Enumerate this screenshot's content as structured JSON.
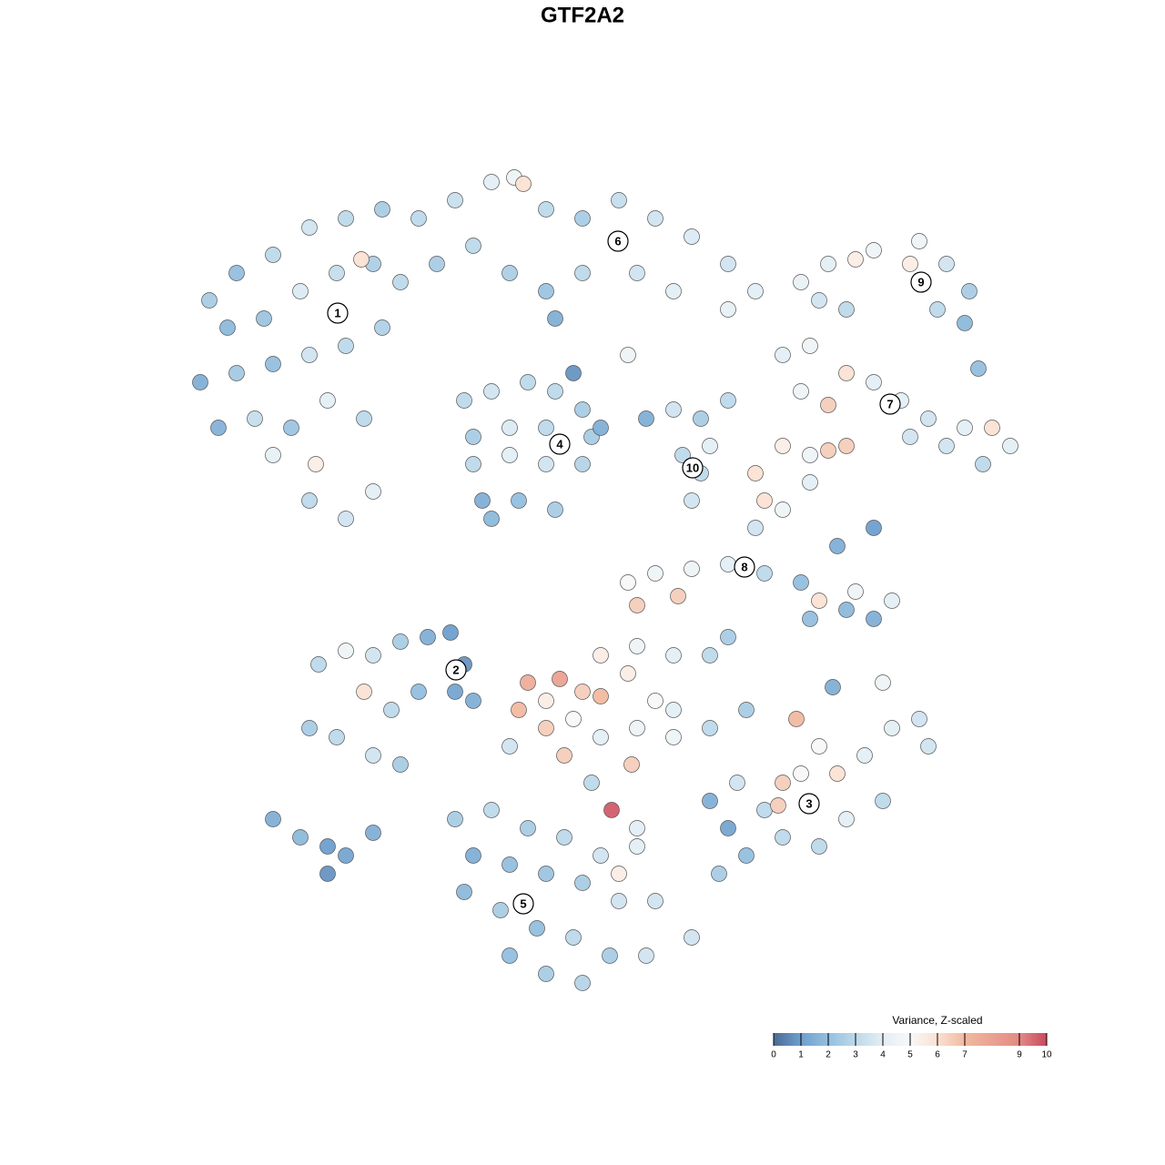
{
  "chart_data": {
    "type": "scatter",
    "title": "GTF2A2",
    "xlim": [
      0,
      1280
    ],
    "ylim": [
      1280,
      0
    ],
    "x": [
      230,
      260,
      300,
      340,
      380,
      420,
      250,
      290,
      330,
      370,
      410,
      440,
      220,
      260,
      300,
      340,
      380,
      420,
      280,
      320,
      360,
      400,
      300,
      347,
      340,
      380,
      410,
      397,
      240,
      460,
      500,
      540,
      565,
      575,
      600,
      640,
      680,
      720,
      760,
      800,
      830,
      480,
      520,
      560,
      600,
      640,
      700,
      740,
      800,
      610,
      630,
      690,
      880,
      910,
      940,
      960,
      1000,
      1010,
      1040,
      1065,
      1060,
      1030,
      930,
      900,
      860,
      890,
      930,
      960,
      990,
      1020,
      1060,
      1090,
      1110,
      1080,
      1040,
      1000,
      910,
      880,
      1075,
      510,
      540,
      580,
      610,
      640,
      520,
      560,
      600,
      650,
      520,
      560,
      600,
      640,
      530,
      570,
      610,
      540,
      660,
      740,
      770,
      800,
      750,
      780,
      770,
      760,
      710,
      830,
      860,
      890,
      910,
      930,
      840,
      860,
      890,
      830,
      690,
      720,
      760,
      800,
      840,
      880,
      920,
      960,
      900,
      940,
      980,
      890,
      930,
      960,
      745,
      700,
      580,
      615,
      600,
      640,
      660,
      690,
      720,
      740,
      570,
      600,
      630,
      660,
      700,
      740,
      780,
      820,
      660,
      700,
      740,
      780,
      800,
      694,
      672,
      650,
      620,
      560,
      700,
      350,
      380,
      410,
      440,
      470,
      495,
      510,
      500,
      460,
      400,
      430,
      340,
      370,
      410,
      440,
      520,
      300,
      330,
      360,
      380,
      360,
      410,
      500,
      540,
      580,
      620,
      660,
      700,
      520,
      560,
      600,
      640,
      680,
      720,
      510,
      550,
      590,
      630,
      670,
      710,
      560,
      600,
      640,
      760,
      680,
      780,
      800,
      820,
      840,
      860,
      880,
      900,
      920,
      950,
      980,
      1010,
      1020,
      970,
      930,
      900,
      860,
      810,
      875,
      915,
      970,
      790,
      855
    ],
    "y": [
      330,
      300,
      280,
      250,
      240,
      230,
      360,
      350,
      320,
      300,
      290,
      310,
      420,
      410,
      400,
      390,
      380,
      360,
      460,
      470,
      440,
      460,
      500,
      510,
      550,
      570,
      540,
      285,
      470,
      240,
      220,
      200,
      195,
      202,
      230,
      240,
      220,
      240,
      260,
      290,
      320,
      290,
      270,
      300,
      320,
      300,
      300,
      320,
      340,
      350,
      410,
      390,
      310,
      290,
      285,
      275,
      290,
      265,
      290,
      320,
      355,
      340,
      340,
      330,
      390,
      380,
      410,
      420,
      440,
      460,
      470,
      470,
      490,
      510,
      490,
      480,
      445,
      430,
      405,
      440,
      430,
      420,
      430,
      450,
      480,
      470,
      470,
      480,
      510,
      500,
      510,
      510,
      550,
      550,
      560,
      570,
      470,
      450,
      460,
      440,
      500,
      490,
      520,
      550,
      460,
      520,
      490,
      500,
      495,
      490,
      550,
      560,
      530,
      580,
      640,
      630,
      625,
      620,
      630,
      640,
      600,
      580,
      660,
      650,
      660,
      680,
      670,
      680,
      655,
      665,
      750,
      746,
      770,
      760,
      765,
      740,
      770,
      780,
      780,
      800,
      790,
      810,
      800,
      810,
      800,
      780,
      720,
      710,
      720,
      720,
      700,
      840,
      890,
      860,
      830,
      820,
      910,
      730,
      715,
      720,
      705,
      700,
      695,
      730,
      760,
      760,
      760,
      780,
      800,
      810,
      830,
      840,
      770,
      900,
      920,
      930,
      940,
      960,
      915,
      900,
      890,
      910,
      920,
      940,
      930,
      940,
      950,
      960,
      970,
      990,
      990,
      980,
      1000,
      1020,
      1030,
      1050,
      1050,
      1050,
      1070,
      1080,
      1030,
      960,
      880,
      910,
      940,
      890,
      860,
      850,
      820,
      850,
      830,
      800,
      790,
      820,
      880,
      900,
      930,
      920,
      860,
      790,
      755,
      750,
      960,
      885
    ],
    "values": [
      2.5,
      2,
      3,
      3.5,
      3,
      2.5,
      1.8,
      2.2,
      3.8,
      3.2,
      2.6,
      3,
      1.5,
      2.4,
      2,
      3.5,
      3,
      2.7,
      3.2,
      2.2,
      4,
      3,
      4.2,
      5.5,
      3,
      3.5,
      4,
      6,
      1.6,
      3,
      3.3,
      4,
      4.5,
      6,
      3,
      2.5,
      3.2,
      3.5,
      3.8,
      3.5,
      4,
      2.5,
      3,
      2.6,
      2.2,
      3,
      3.5,
      4,
      4.2,
      1.5,
      0.8,
      4.5,
      4.3,
      4,
      5.5,
      4.5,
      5.5,
      4.5,
      3.5,
      2.5,
      1.8,
      3,
      3,
      3.5,
      4,
      4.5,
      6,
      4,
      4,
      3.5,
      4,
      6,
      4,
      3,
      3.5,
      3.5,
      6.5,
      4.5,
      2,
      3,
      3.5,
      3,
      3,
      2.5,
      2.5,
      3.8,
      3,
      2.5,
      3,
      4,
      3.5,
      2.8,
      1.5,
      2,
      2.5,
      1.8,
      1.5,
      3.5,
      2.5,
      3,
      3,
      4,
      3,
      3.5,
      1.5,
      6,
      5.5,
      4.5,
      6.5,
      6.5,
      6,
      4.5,
      4,
      3.5,
      5,
      4.5,
      4.5,
      4,
      3,
      2,
      1.5,
      1,
      6,
      4.5,
      4,
      2,
      1.8,
      1.5,
      6.5,
      6.5,
      7.5,
      8,
      5.5,
      6.5,
      7,
      5.5,
      5,
      4,
      7,
      6.5,
      5,
      4,
      4.5,
      4.5,
      3,
      2.5,
      5.5,
      4.5,
      4,
      3,
      2.5,
      6.5,
      9.7,
      3,
      6.5,
      3.5,
      4,
      3,
      4.5,
      3.5,
      2.5,
      1.5,
      1,
      0.8,
      1.2,
      2,
      6,
      3,
      2.5,
      3,
      3.5,
      2.5,
      1.5,
      1.5,
      1.8,
      1,
      1.2,
      0.8,
      1.5,
      2.5,
      3,
      2.5,
      3,
      3.5,
      4,
      1.5,
      2,
      2.2,
      2.5,
      3.5,
      3.5,
      1.8,
      2.5,
      2,
      3,
      2.5,
      3.5,
      2,
      2.5,
      2.8,
      3.5,
      5.5,
      1.5,
      1.2,
      2,
      3,
      6.5,
      5,
      5,
      6,
      4,
      4,
      3.5,
      3.5,
      3,
      4,
      3,
      3,
      3.5,
      7,
      1.5,
      4.5,
      2.5,
      6.5
    ],
    "cluster_labels": [
      "1",
      "2",
      "3",
      "4",
      "5",
      "6",
      "7",
      "8",
      "9",
      "10"
    ],
    "cluster_x": [
      371,
      501,
      889,
      615,
      575,
      679,
      978,
      818,
      1012,
      761
    ],
    "cluster_y": [
      344,
      736,
      883,
      488,
      993,
      265,
      444,
      623,
      310,
      514
    ],
    "colorscale": [
      [
        0,
        "#4a6a96"
      ],
      [
        1,
        "#6f9fcd"
      ],
      [
        2,
        "#94bfdf"
      ],
      [
        3,
        "#bdd9ea"
      ],
      [
        4,
        "#e3eef5"
      ],
      [
        5,
        "#f8f8f8"
      ],
      [
        6,
        "#fbe1d3"
      ],
      [
        7,
        "#f1b9a0"
      ],
      [
        9,
        "#e28b84"
      ],
      [
        10,
        "#c9485d"
      ]
    ],
    "colorbar": {
      "title": "Variance, Z-scaled",
      "lim": [
        0,
        10
      ],
      "ticks": [
        0,
        1,
        2,
        3,
        4,
        5,
        6,
        7,
        9,
        10
      ]
    }
  }
}
